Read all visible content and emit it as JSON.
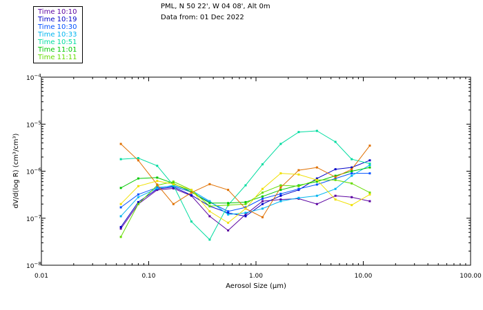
{
  "header": {
    "location": "PML, N 50 22', W 04 08', Alt 0m",
    "date_line": "Data from: 01 Dec 2022"
  },
  "chart_data": {
    "type": "line",
    "xlabel": "Aerosol Size (µm)",
    "ylabel": "dV/d(log R) (cm³/cm³)",
    "xscale": "log",
    "yscale": "log",
    "xlim": [
      0.01,
      100
    ],
    "ylim": [
      1e-08,
      0.0001
    ],
    "x_ticks": [
      {
        "value": 0.01,
        "label": "0.01"
      },
      {
        "value": 0.1,
        "label": "0.10"
      },
      {
        "value": 1,
        "label": "1.00"
      },
      {
        "value": 10,
        "label": "10.00"
      },
      {
        "value": 100,
        "label": "100.00"
      }
    ],
    "y_ticks": [
      {
        "value": 1e-08,
        "base": "10",
        "exp": "−8"
      },
      {
        "value": 1e-07,
        "base": "10",
        "exp": "−7"
      },
      {
        "value": 1e-06,
        "base": "10",
        "exp": "−6"
      },
      {
        "value": 1e-05,
        "base": "10",
        "exp": "−5"
      },
      {
        "value": 0.0001,
        "base": "10",
        "exp": "−4"
      }
    ],
    "grid": false,
    "legend_position": "top-left",
    "x": [
      0.055,
      0.08,
      0.12,
      0.17,
      0.25,
      0.37,
      0.55,
      0.8,
      1.15,
      1.7,
      2.5,
      3.7,
      5.5,
      7.8,
      11.5
    ],
    "series": [
      {
        "name": "Time 10:10",
        "color": "#5a00a0",
        "values": [
          6e-08,
          2e-07,
          4e-07,
          4.3e-07,
          3e-07,
          1.1e-07,
          5.5e-08,
          1.2e-07,
          2.3e-07,
          2.5e-07,
          2.6e-07,
          2e-07,
          3e-07,
          2.8e-07,
          2.3e-07
        ]
      },
      {
        "name": "Time 10:19",
        "color": "#0000c8",
        "values": [
          6.5e-08,
          2.2e-07,
          4.2e-07,
          4.6e-07,
          3.1e-07,
          1.8e-07,
          1.3e-07,
          1.1e-07,
          2e-07,
          3e-07,
          4e-07,
          7e-07,
          1.1e-06,
          1.2e-06,
          1.7e-06
        ]
      },
      {
        "name": "Time 10:30",
        "color": "#0050ff",
        "values": [
          1.7e-07,
          3.2e-07,
          4.5e-07,
          4.8e-07,
          3.6e-07,
          2.2e-07,
          1.4e-07,
          1.7e-07,
          2.6e-07,
          3.3e-07,
          4.2e-07,
          5.2e-07,
          7e-07,
          9e-07,
          9e-07
        ]
      },
      {
        "name": "Time 10:33",
        "color": "#00b4f0",
        "values": [
          1.1e-07,
          2.8e-07,
          4.3e-07,
          5e-07,
          3.9e-07,
          2.3e-07,
          1.2e-07,
          1.3e-07,
          1.6e-07,
          2.3e-07,
          2.7e-07,
          3e-07,
          4.2e-07,
          8e-07,
          1.35e-06
        ]
      },
      {
        "name": "Time 10:51",
        "color": "#00dca0",
        "values": [
          1.8e-06,
          1.9e-06,
          1.3e-06,
          5e-07,
          8.5e-08,
          3.5e-08,
          1.9e-07,
          5e-07,
          1.4e-06,
          3.8e-06,
          6.8e-06,
          7.2e-06,
          4.2e-06,
          1.8e-06,
          1.45e-06
        ]
      },
      {
        "name": "Time 11:01",
        "color": "#00c800",
        "values": [
          4.4e-07,
          7e-07,
          7.3e-07,
          5.5e-07,
          3.6e-07,
          2.1e-07,
          2.1e-07,
          2.2e-07,
          2.9e-07,
          4e-07,
          5e-07,
          6e-07,
          8e-07,
          1e-06,
          1.2e-06
        ]
      },
      {
        "name": "Time 11:11",
        "color": "#64dc00",
        "values": [
          4e-08,
          2e-07,
          5e-07,
          6e-07,
          4e-07,
          1.8e-07,
          1.9e-07,
          2e-07,
          3.5e-07,
          5e-07,
          4.8e-07,
          6.5e-07,
          6.5e-07,
          5.5e-07,
          3.5e-07
        ]
      },
      {
        "name": "",
        "color": "#e07000",
        "values": [
          3.8e-06,
          1.7e-06,
          5.2e-07,
          2e-07,
          3.5e-07,
          5.3e-07,
          4e-07,
          1.6e-07,
          1.05e-07,
          4.5e-07,
          1.05e-06,
          1.2e-06,
          7.5e-07,
          1.1e-06,
          3.5e-06
        ]
      },
      {
        "name": "",
        "color": "#f0e000",
        "values": [
          2e-07,
          4.8e-07,
          6.2e-07,
          5.3e-07,
          4e-07,
          1.4e-07,
          8e-08,
          1.6e-07,
          4.2e-07,
          9e-07,
          8.5e-07,
          6.5e-07,
          2.5e-07,
          1.9e-07,
          3.2e-07
        ]
      }
    ]
  }
}
